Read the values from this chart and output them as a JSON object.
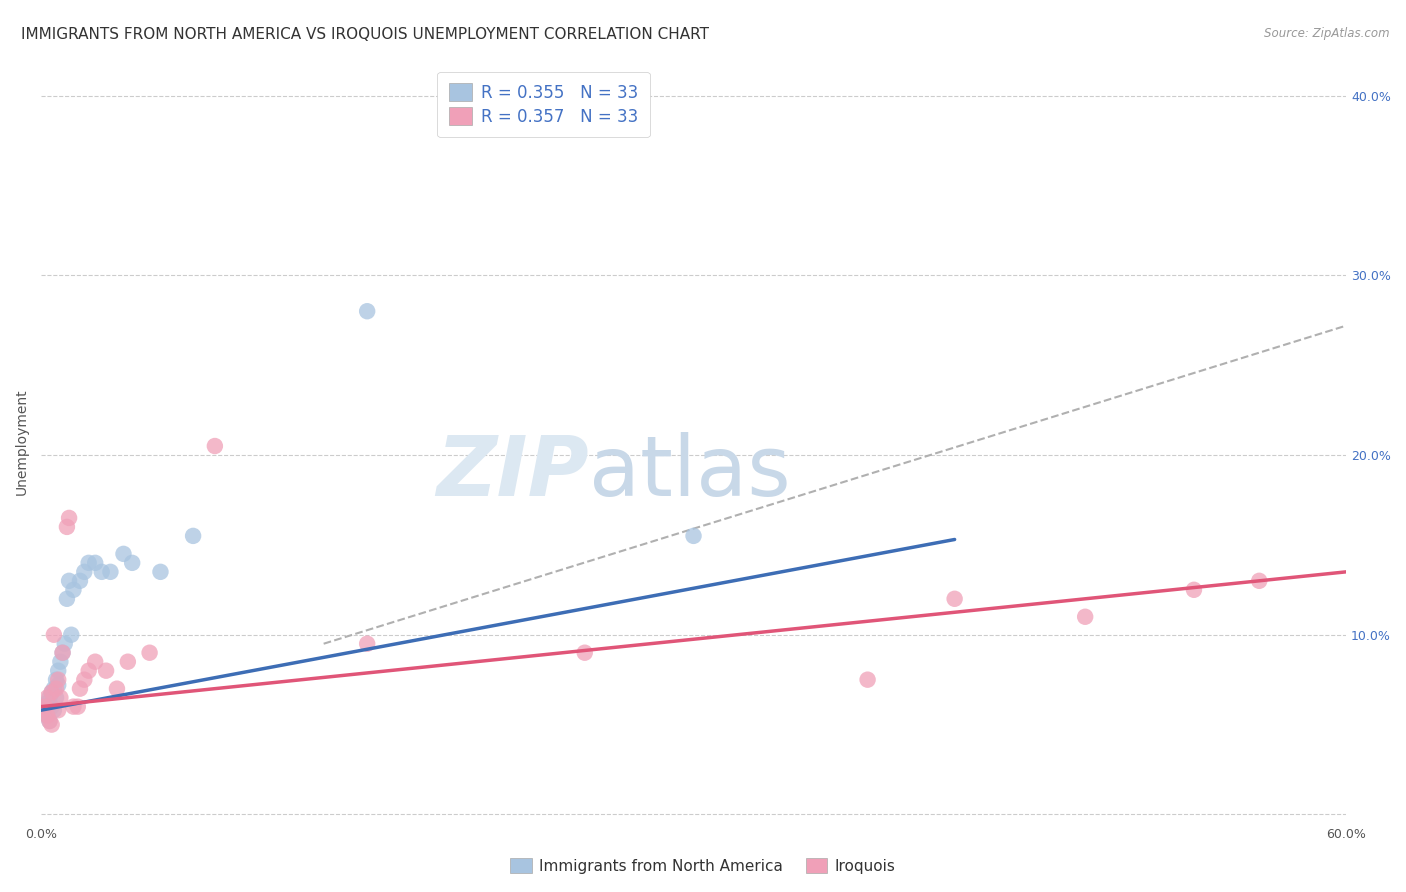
{
  "title": "IMMIGRANTS FROM NORTH AMERICA VS IROQUOIS UNEMPLOYMENT CORRELATION CHART",
  "source": "Source: ZipAtlas.com",
  "ylabel": "Unemployment",
  "xlim": [
    0.0,
    0.6
  ],
  "ylim": [
    -0.005,
    0.42
  ],
  "xticks": [
    0.0,
    0.1,
    0.2,
    0.3,
    0.4,
    0.5,
    0.6
  ],
  "xtick_labels": [
    "0.0%",
    "",
    "",
    "",
    "",
    "",
    "60.0%"
  ],
  "yticks": [
    0.0,
    0.1,
    0.2,
    0.3,
    0.4
  ],
  "ytick_labels_right": [
    "",
    "10.0%",
    "20.0%",
    "30.0%",
    "40.0%"
  ],
  "blue_R": "0.355",
  "blue_N": "33",
  "pink_R": "0.357",
  "pink_N": "33",
  "blue_scatter_x": [
    0.001,
    0.002,
    0.003,
    0.003,
    0.004,
    0.004,
    0.005,
    0.005,
    0.006,
    0.006,
    0.007,
    0.007,
    0.008,
    0.008,
    0.009,
    0.01,
    0.011,
    0.012,
    0.013,
    0.014,
    0.015,
    0.018,
    0.02,
    0.022,
    0.025,
    0.028,
    0.032,
    0.038,
    0.042,
    0.055,
    0.07,
    0.15,
    0.3
  ],
  "blue_scatter_y": [
    0.06,
    0.058,
    0.062,
    0.055,
    0.065,
    0.052,
    0.068,
    0.06,
    0.07,
    0.058,
    0.075,
    0.065,
    0.08,
    0.072,
    0.085,
    0.09,
    0.095,
    0.12,
    0.13,
    0.1,
    0.125,
    0.13,
    0.135,
    0.14,
    0.14,
    0.135,
    0.135,
    0.145,
    0.14,
    0.135,
    0.155,
    0.28,
    0.155
  ],
  "pink_scatter_x": [
    0.001,
    0.002,
    0.003,
    0.003,
    0.004,
    0.005,
    0.005,
    0.006,
    0.007,
    0.008,
    0.008,
    0.009,
    0.01,
    0.012,
    0.013,
    0.015,
    0.017,
    0.018,
    0.02,
    0.022,
    0.025,
    0.03,
    0.035,
    0.04,
    0.05,
    0.08,
    0.15,
    0.25,
    0.38,
    0.42,
    0.48,
    0.53,
    0.56
  ],
  "pink_scatter_y": [
    0.058,
    0.06,
    0.055,
    0.065,
    0.052,
    0.068,
    0.05,
    0.1,
    0.07,
    0.058,
    0.075,
    0.065,
    0.09,
    0.16,
    0.165,
    0.06,
    0.06,
    0.07,
    0.075,
    0.08,
    0.085,
    0.08,
    0.07,
    0.085,
    0.09,
    0.205,
    0.095,
    0.09,
    0.075,
    0.12,
    0.11,
    0.125,
    0.13
  ],
  "blue_line_x": [
    0.0,
    0.42
  ],
  "blue_line_y": [
    0.058,
    0.153
  ],
  "pink_line_x": [
    0.0,
    0.6
  ],
  "pink_line_y": [
    0.06,
    0.135
  ],
  "dashed_line_x": [
    0.13,
    0.6
  ],
  "dashed_line_y": [
    0.095,
    0.272
  ],
  "blue_scatter_color": "#a8c4e0",
  "pink_scatter_color": "#f0a0b8",
  "blue_line_color": "#3d6db5",
  "pink_line_color": "#e05578",
  "blue_text_color": "#4472c4",
  "legend_label_blue": "Immigrants from North America",
  "legend_label_pink": "Iroquois",
  "watermark_zip": "ZIP",
  "watermark_atlas": "atlas",
  "background_color": "#ffffff",
  "grid_color": "#cccccc",
  "title_fontsize": 11,
  "axis_label_fontsize": 10,
  "tick_fontsize": 9,
  "legend_fontsize": 10
}
